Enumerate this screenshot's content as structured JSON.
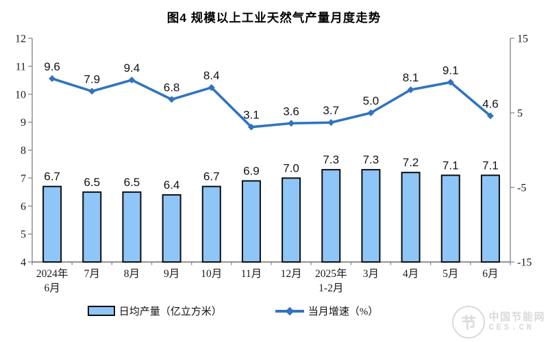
{
  "title": "图4 规模以上工业天然气产量月度走势",
  "chart_data": {
    "type": "bar+line",
    "categories": [
      "2024年\n6月",
      "7月",
      "8月",
      "9月",
      "10月",
      "11月",
      "12月",
      "2025年\n1-2月",
      "3月",
      "4月",
      "5月",
      "6月"
    ],
    "series": [
      {
        "name": "日均产量（亿立方米）",
        "type": "bar",
        "axis": "left",
        "values": [
          6.7,
          6.5,
          6.5,
          6.4,
          6.7,
          6.9,
          7.0,
          7.3,
          7.3,
          7.2,
          7.1,
          7.1
        ],
        "color": "#8EC6F7",
        "border_color": "#0d0d0d"
      },
      {
        "name": "当月增速（%）",
        "type": "line",
        "axis": "right",
        "values": [
          9.6,
          7.9,
          9.4,
          6.8,
          8.4,
          3.1,
          3.6,
          3.7,
          5.0,
          8.1,
          9.1,
          4.6
        ],
        "color": "#3073C0",
        "marker": "diamond"
      }
    ],
    "axes": {
      "left": {
        "min": 4,
        "max": 12,
        "ticks": [
          12,
          11,
          10,
          9,
          8,
          7,
          6,
          5,
          4
        ]
      },
      "right": {
        "min": -15,
        "max": 15,
        "ticks": [
          15,
          5,
          -5,
          -15
        ]
      }
    },
    "grid": false,
    "legend_position": "bottom",
    "axis_color": "#8a8a8a",
    "label_decimals": 1
  },
  "legend": {
    "bar_label": "日均产量（亿立方米）",
    "line_label": "当月增速（%）"
  },
  "watermark": {
    "logo_glyph": "节",
    "line1": "中国节能网",
    "line2": "CES.CN"
  }
}
